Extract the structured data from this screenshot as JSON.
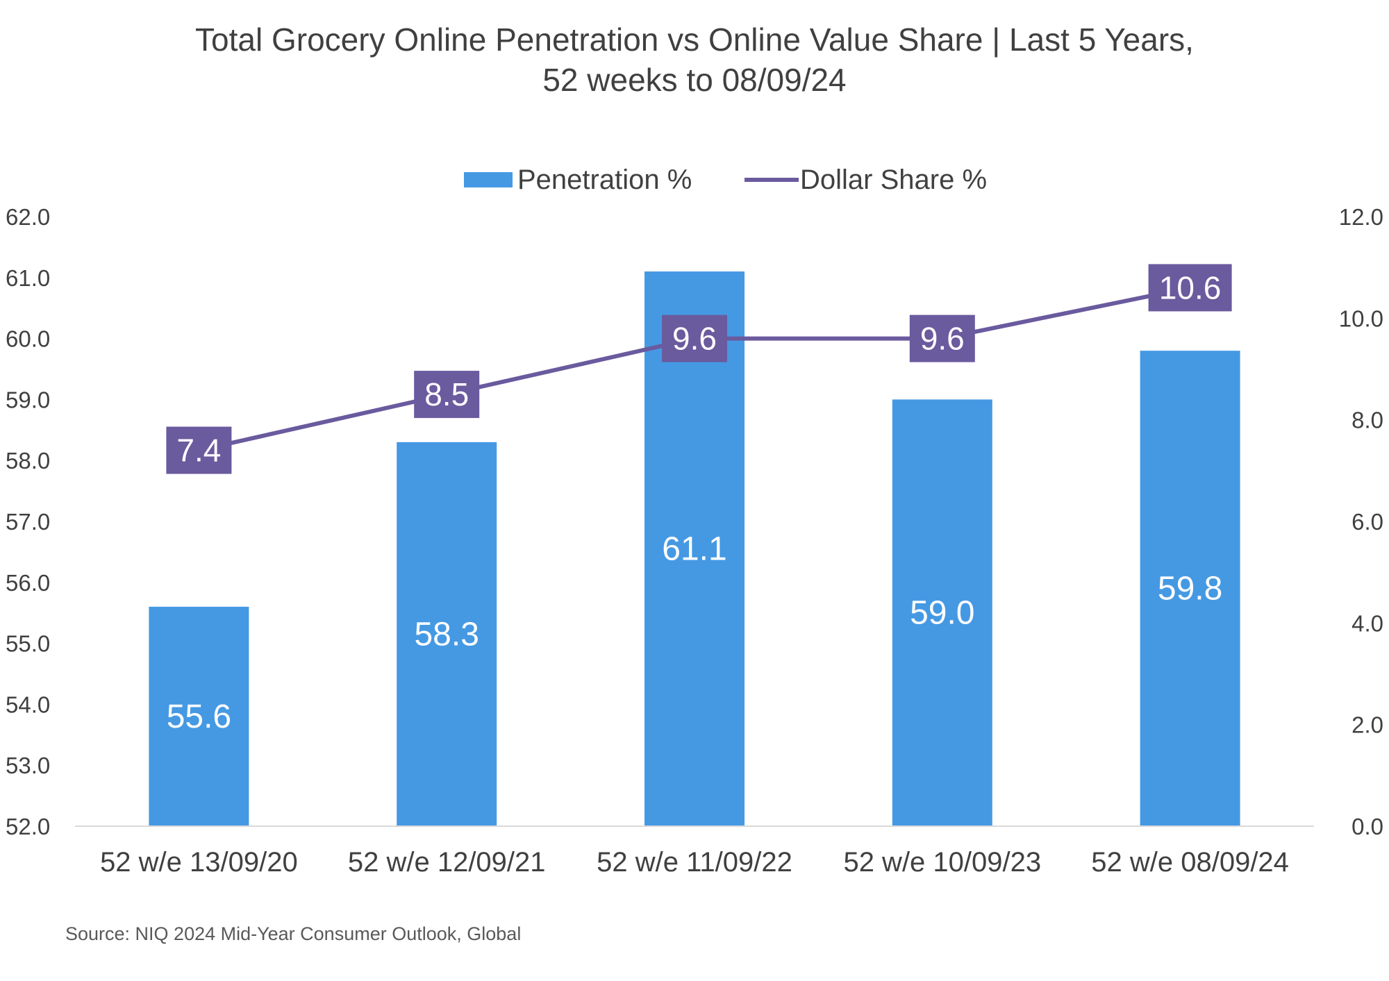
{
  "chart_data": {
    "type": "bar",
    "title": "Total Grocery Online Penetration vs Online Value Share | Last 5 Years,",
    "subtitle": "52 weeks to 08/09/24",
    "categories": [
      "52 w/e 13/09/20",
      "52 w/e 12/09/21",
      "52 w/e 11/09/22",
      "52 w/e 10/09/23",
      "52 w/e 08/09/24"
    ],
    "series": [
      {
        "name": "Penetration %",
        "type": "bar",
        "axis": "left",
        "color": "#4599E3",
        "values": [
          55.6,
          58.3,
          61.1,
          59.0,
          59.8
        ],
        "labels": [
          "55.6",
          "58.3",
          "61.1",
          "59.0",
          "59.8"
        ]
      },
      {
        "name": "Dollar Share %",
        "type": "line",
        "axis": "right",
        "color": "#6A5A9E",
        "values": [
          7.4,
          8.5,
          9.6,
          9.6,
          10.6
        ],
        "labels": [
          "7.4",
          "8.5",
          "9.6",
          "9.6",
          "10.6"
        ]
      }
    ],
    "y_left": {
      "ylim": [
        52.0,
        62.0
      ],
      "ticks": [
        "52.0",
        "53.0",
        "54.0",
        "55.0",
        "56.0",
        "57.0",
        "58.0",
        "59.0",
        "60.0",
        "61.0",
        "62.0"
      ]
    },
    "y_right": {
      "ylim": [
        0.0,
        12.0
      ],
      "ticks": [
        "0.0",
        "2.0",
        "4.0",
        "6.0",
        "8.0",
        "10.0",
        "12.0"
      ]
    },
    "legend": "top-center",
    "grid": false
  },
  "source": "Source: NIQ 2024 Mid-Year Consumer Outlook, Global",
  "colors": {
    "bar": "#4599E3",
    "line": "#6A5A9E",
    "axis_text": "#404040",
    "baseline": "#D9D9D9"
  }
}
